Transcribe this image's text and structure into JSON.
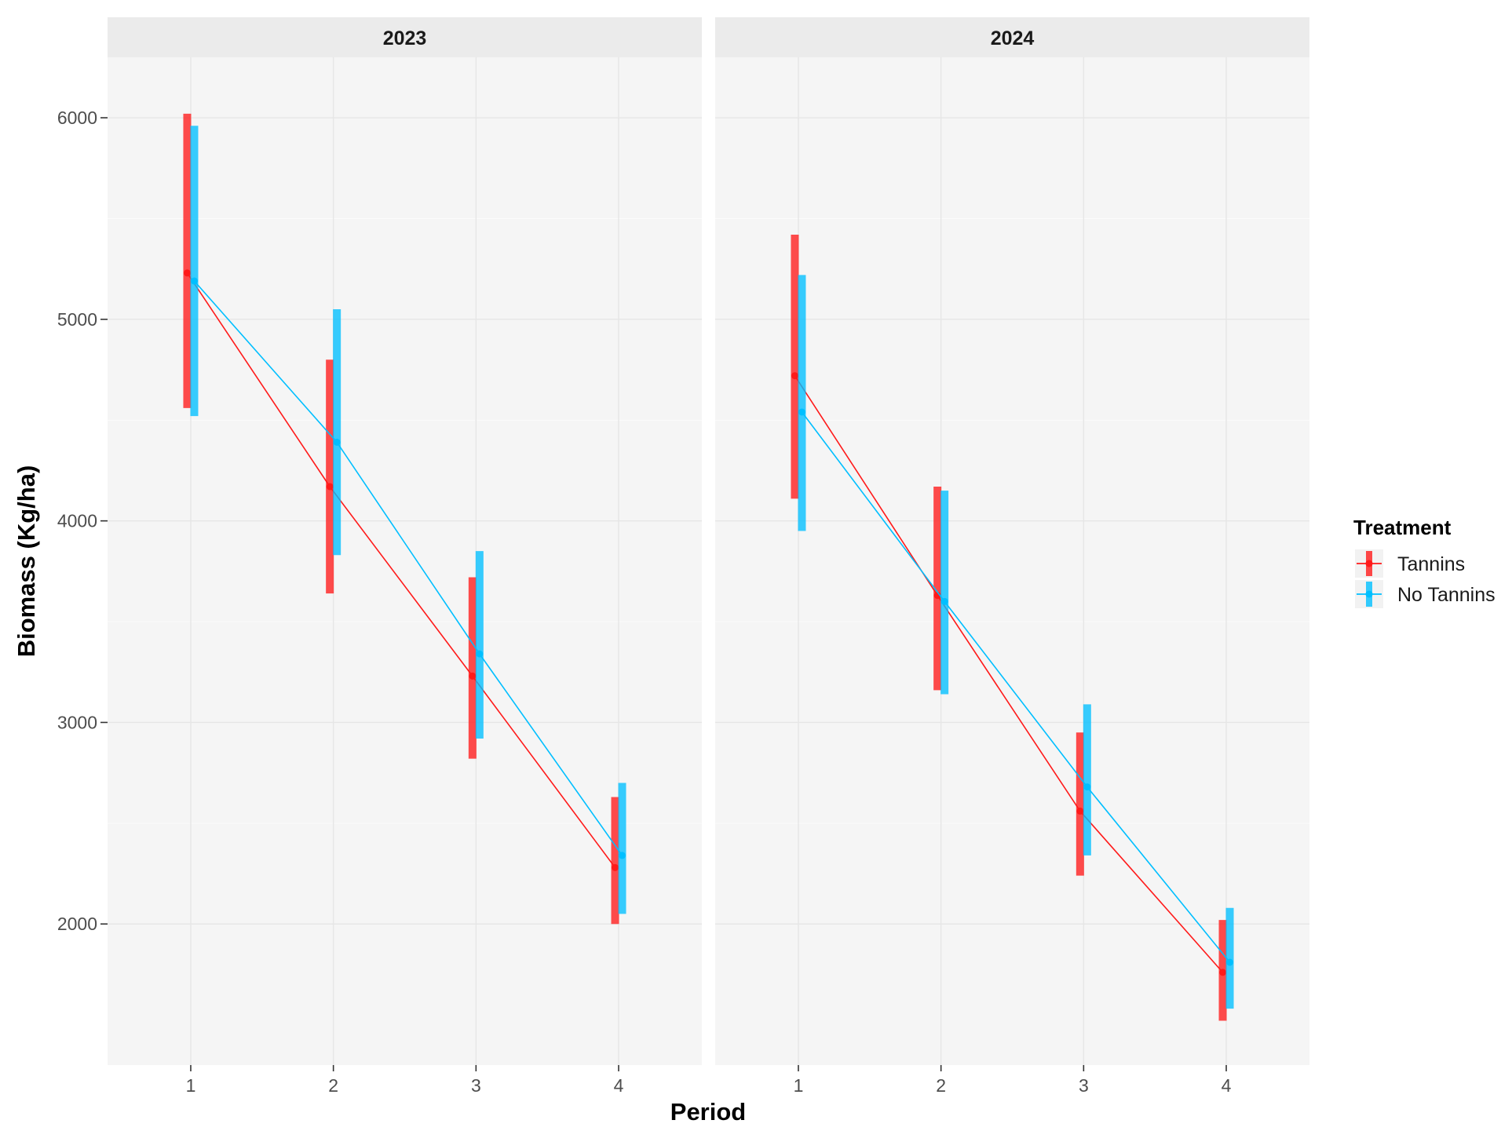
{
  "chart_data": {
    "type": "line",
    "facet_labels": [
      "2023",
      "2024"
    ],
    "xlabel": "Period",
    "ylabel": "Biomass (Kg/ha)",
    "x_categories": [
      "1",
      "2",
      "3",
      "4"
    ],
    "ylim": [
      1300,
      6300
    ],
    "yticks": [
      2000,
      3000,
      4000,
      5000,
      6000
    ],
    "grid": true,
    "legend": {
      "title": "Treatment",
      "position": "right"
    },
    "series": [
      {
        "name": "Tannins",
        "color": "#ff1a1a",
        "panels": [
          {
            "facet": "2023",
            "mean": [
              5230,
              4170,
              3230,
              2280
            ],
            "lower": [
              4560,
              3640,
              2820,
              2000
            ],
            "upper": [
              6020,
              4800,
              3720,
              2630
            ]
          },
          {
            "facet": "2024",
            "mean": [
              4720,
              3630,
              2560,
              1760
            ],
            "lower": [
              4110,
              3160,
              2240,
              1520
            ],
            "upper": [
              5420,
              4170,
              2950,
              2020
            ]
          }
        ]
      },
      {
        "name": "No Tannins",
        "color": "#00bfff",
        "panels": [
          {
            "facet": "2023",
            "mean": [
              5190,
              4390,
              3340,
              2340
            ],
            "lower": [
              4520,
              3830,
              2920,
              2050
            ],
            "upper": [
              5960,
              5050,
              3850,
              2700
            ]
          },
          {
            "facet": "2024",
            "mean": [
              4540,
              3600,
              2680,
              1810
            ],
            "lower": [
              3950,
              3140,
              2340,
              1580
            ],
            "upper": [
              5220,
              4150,
              3090,
              2080
            ]
          }
        ]
      }
    ]
  }
}
